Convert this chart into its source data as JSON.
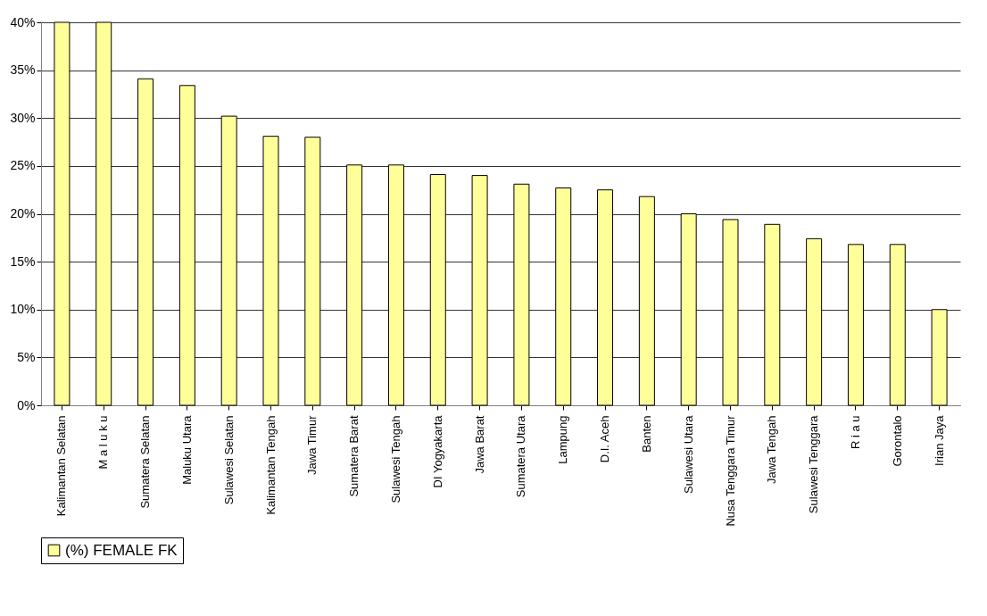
{
  "chart_data": {
    "type": "bar",
    "categories": [
      "Kalimantan Selatan",
      "M a l u k u",
      "Sumatera Selatan",
      "Maluku Utara",
      "Sulawesi Selatan",
      "Kalimantan Tengah",
      "Jawa Timur",
      "Sumatera Barat",
      "Sulawesi Tengah",
      "DI Yogyakarta",
      "Jawa Barat",
      "Sumatera Utara",
      "Lampung",
      "D.I. Aceh",
      "Banten",
      "Sulawesi Utara",
      "Nusa Tenggara Timur",
      "Jawa Tengah",
      "Sulawesi Tenggara",
      "R i a u",
      "Gorontalo",
      "Irian Jaya"
    ],
    "series": [
      {
        "name": "(%) FEMALE FK",
        "color": "#ffff99",
        "values": [
          40,
          40,
          34.1,
          33.4,
          30.2,
          28.1,
          28,
          25.1,
          25.1,
          24.1,
          24,
          23.1,
          22.7,
          22.5,
          21.8,
          20,
          19.4,
          18.9,
          17.4,
          16.8,
          16.8,
          10
        ]
      }
    ],
    "ylim": [
      0,
      40
    ],
    "yticks": [
      {
        "value": 0,
        "label": "0%"
      },
      {
        "value": 5,
        "label": "5%"
      },
      {
        "value": 10,
        "label": "10%"
      },
      {
        "value": 15,
        "label": "15%"
      },
      {
        "value": 20,
        "label": "20%"
      },
      {
        "value": 25,
        "label": "25%"
      },
      {
        "value": 30,
        "label": "30%"
      },
      {
        "value": 35,
        "label": "35%"
      },
      {
        "value": 40,
        "label": "40%"
      }
    ],
    "grid": "y",
    "legend": "bottom"
  }
}
